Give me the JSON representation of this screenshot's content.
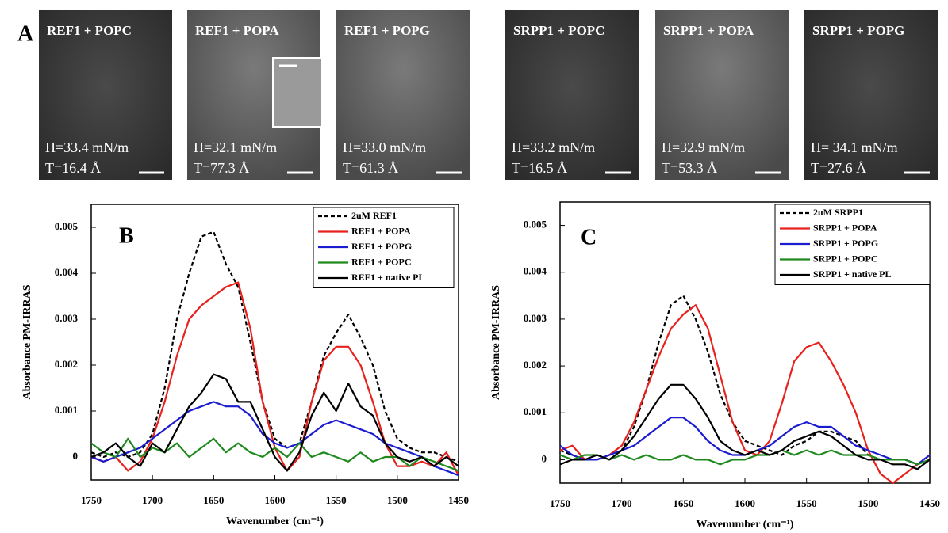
{
  "panel_a": {
    "label": "A",
    "images": [
      {
        "title": "REF1 + POPC",
        "pressure": "Π=33.4 mN/m",
        "thickness": "T=16.4 Å"
      },
      {
        "title": "REF1 + POPA",
        "pressure": "Π=32.1 mN/m",
        "thickness": "T=77.3 Å"
      },
      {
        "title": "REF1 + POPG",
        "pressure": "Π=33.0 mN/m",
        "thickness": "T=61.3 Å"
      },
      {
        "title": "SRPP1 + POPC",
        "pressure": "Π=33.2 mN/m",
        "thickness": "T=16.5 Å"
      },
      {
        "title": "SRPP1 + POPA",
        "pressure": "Π=32.9 mN/m",
        "thickness": "T=53.3 Å"
      },
      {
        "title": "SRPP1 + POPG",
        "pressure": "Π= 34.1 mN/m",
        "thickness": "T=27.6 Å"
      }
    ]
  },
  "chart_data": [
    {
      "type": "line",
      "panel_label": "B",
      "x_label": "Wavenumber (cm⁻¹)",
      "y_label": "Absorbance PM-IRRAS",
      "xlim": [
        1750,
        1450
      ],
      "xticks": [
        1750,
        1700,
        1650,
        1600,
        1550,
        1500,
        1450
      ],
      "ylim": [
        -0.0005,
        0.0055
      ],
      "yticks": [
        0,
        0.001,
        0.002,
        0.003,
        0.004,
        0.005
      ],
      "legend": "upper right",
      "x": [
        1750,
        1740,
        1730,
        1720,
        1710,
        1700,
        1690,
        1680,
        1670,
        1660,
        1650,
        1640,
        1630,
        1620,
        1610,
        1600,
        1590,
        1580,
        1570,
        1560,
        1550,
        1540,
        1530,
        1520,
        1510,
        1500,
        1490,
        1480,
        1470,
        1460,
        1450
      ],
      "series": [
        {
          "name": "2uM REF1",
          "color": "#000000",
          "style": "dashed",
          "values": [
            0.0001,
            0,
            0.0001,
            0,
            0.0001,
            0.0005,
            0.0015,
            0.003,
            0.004,
            0.0048,
            0.0049,
            0.0042,
            0.0037,
            0.0025,
            0.0012,
            0.0004,
            0.0002,
            0.0003,
            0.0012,
            0.0022,
            0.0027,
            0.0031,
            0.0026,
            0.002,
            0.001,
            0.0004,
            0.0002,
            0.0001,
            0.0001,
            0,
            -0.0001
          ]
        },
        {
          "name": "REF1 + POPA",
          "color": "#e8211d",
          "style": "solid",
          "values": [
            0,
            -0.0001,
            0,
            -0.0003,
            -0.0001,
            0.0004,
            0.0012,
            0.0022,
            0.003,
            0.0033,
            0.0035,
            0.0037,
            0.0038,
            0.0028,
            0.0012,
            0.0002,
            -0.0003,
            0,
            0.0012,
            0.0021,
            0.0024,
            0.0024,
            0.002,
            0.0012,
            0.0003,
            -0.0002,
            -0.0002,
            -0.0001,
            -0.0002,
            0.0001,
            -0.0004
          ]
        },
        {
          "name": "REF1 + POPG",
          "color": "#1b1bd0",
          "style": "solid",
          "values": [
            0,
            -0.0001,
            0,
            0.0001,
            0.0002,
            0.0004,
            0.0006,
            0.0008,
            0.001,
            0.0011,
            0.0012,
            0.0011,
            0.0011,
            0.0009,
            0.0005,
            0.0003,
            0.0002,
            0.0003,
            0.0005,
            0.0007,
            0.0008,
            0.0007,
            0.0006,
            0.0005,
            0.0003,
            0.0002,
            0.0001,
            0,
            -0.0002,
            -0.0003,
            -0.0004
          ]
        },
        {
          "name": "REF1 + POPC",
          "color": "#1e8a1e",
          "style": "solid",
          "values": [
            0.0003,
            0.0001,
            0,
            0.0004,
            0,
            0.0002,
            0.0001,
            0.0003,
            0,
            0.0002,
            0.0004,
            0.0001,
            0.0003,
            0.0001,
            0,
            0.0002,
            0,
            0.0003,
            0,
            0.0001,
            0,
            -0.0001,
            0.0001,
            -0.0001,
            0,
            0,
            -0.0002,
            0,
            -0.0001,
            -0.0002,
            -0.0003
          ]
        },
        {
          "name": "REF1 + native PL",
          "color": "#000000",
          "style": "solid",
          "values": [
            0,
            0.0001,
            0.0003,
            0,
            -0.0002,
            0.0003,
            0.0001,
            0.0006,
            0.0011,
            0.0014,
            0.0018,
            0.0017,
            0.0012,
            0.0012,
            0.0006,
            0,
            -0.0003,
            0.0001,
            0.0009,
            0.0014,
            0.001,
            0.0016,
            0.0011,
            0.0009,
            0.0003,
            0,
            -0.0001,
            0,
            -0.0002,
            0,
            -0.0002
          ]
        }
      ]
    },
    {
      "type": "line",
      "panel_label": "C",
      "x_label": "Wavenumber (cm⁻¹)",
      "y_label": "Absorbance PM-IRRAS",
      "xlim": [
        1750,
        1450
      ],
      "xticks": [
        1750,
        1700,
        1650,
        1600,
        1550,
        1500,
        1450
      ],
      "ylim": [
        -0.0005,
        0.0055
      ],
      "yticks": [
        0,
        0.001,
        0.002,
        0.003,
        0.004,
        0.005
      ],
      "legend": "upper right",
      "x": [
        1750,
        1740,
        1730,
        1720,
        1710,
        1700,
        1690,
        1680,
        1670,
        1660,
        1650,
        1640,
        1630,
        1620,
        1610,
        1600,
        1590,
        1580,
        1570,
        1560,
        1550,
        1540,
        1530,
        1520,
        1510,
        1500,
        1490,
        1480,
        1470,
        1460,
        1450
      ],
      "series": [
        {
          "name": "2uM SRPP1",
          "color": "#000000",
          "style": "dashed",
          "values": [
            0.0002,
            0.0001,
            0,
            0,
            0.0001,
            0.0002,
            0.0007,
            0.0015,
            0.0025,
            0.0033,
            0.0035,
            0.003,
            0.0023,
            0.0014,
            0.0008,
            0.0004,
            0.0003,
            0.0002,
            0.0001,
            0.0003,
            0.0004,
            0.0006,
            0.0006,
            0.0005,
            0.0004,
            0.0001,
            0,
            0,
            0,
            -0.0001,
            0
          ]
        },
        {
          "name": "SRPP1 + POPA",
          "color": "#e8211d",
          "style": "solid",
          "values": [
            0.0002,
            0.0003,
            0,
            0,
            0.0001,
            0.0003,
            0.0008,
            0.0015,
            0.0022,
            0.0028,
            0.0031,
            0.0033,
            0.0028,
            0.0018,
            0.0008,
            0.0002,
            0.0001,
            0.0004,
            0.0012,
            0.0021,
            0.0024,
            0.0025,
            0.0021,
            0.0016,
            0.001,
            0.0002,
            -0.0003,
            -0.0005,
            -0.0003,
            -0.0001,
            0
          ]
        },
        {
          "name": "SRPP1 + POPG",
          "color": "#1b1bd0",
          "style": "solid",
          "values": [
            0.0003,
            0.0001,
            0,
            0,
            0.0001,
            0.0002,
            0.0003,
            0.0005,
            0.0007,
            0.0009,
            0.0009,
            0.0007,
            0.0004,
            0.0002,
            0.0001,
            0.0001,
            0.0002,
            0.0003,
            0.0005,
            0.0007,
            0.0008,
            0.0007,
            0.0007,
            0.0005,
            0.0003,
            0.0002,
            0.0001,
            0,
            0,
            -0.0001,
            0.0001
          ]
        },
        {
          "name": "SRPP1 + POPC",
          "color": "#1e8a1e",
          "style": "solid",
          "values": [
            0.0001,
            0,
            0.0001,
            0.0001,
            0,
            0.0001,
            0,
            0.0001,
            0,
            0,
            0.0001,
            0,
            0,
            -0.0001,
            0,
            0,
            0.0001,
            0.0001,
            0.0002,
            0.0001,
            0.0002,
            0.0001,
            0.0002,
            0.0001,
            0.0001,
            0.0001,
            0,
            0,
            0,
            -0.0001,
            0
          ]
        },
        {
          "name": "SRPP1 + native PL",
          "color": "#000000",
          "style": "solid",
          "values": [
            -0.0001,
            0,
            0,
            0.0001,
            0,
            0.0002,
            0.0005,
            0.0009,
            0.0013,
            0.0016,
            0.0016,
            0.0013,
            0.0009,
            0.0004,
            0.0002,
            0.0001,
            0.0002,
            0.0001,
            0.0002,
            0.0004,
            0.0005,
            0.0006,
            0.0005,
            0.0003,
            0.0001,
            0,
            0,
            -0.0001,
            -0.0001,
            -0.0002,
            0
          ]
        }
      ]
    }
  ]
}
